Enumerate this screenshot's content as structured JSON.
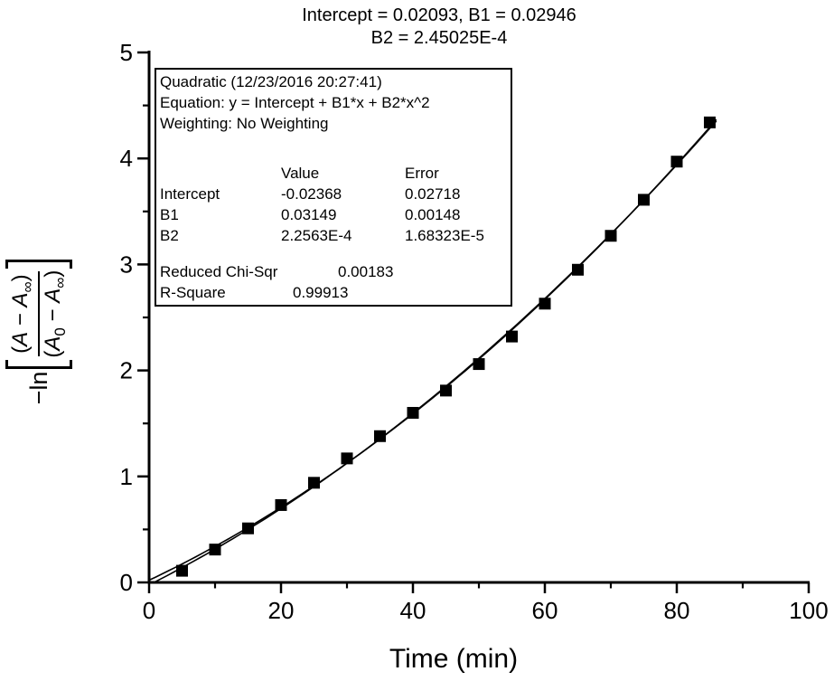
{
  "chart_data": {
    "type": "scatter",
    "title_lines": [
      "Intercept = 0.02093, B1 = 0.02946",
      "B2 = 2.45025E-4"
    ],
    "xlabel": "Time (min)",
    "ylabel_plain": "−ln[(A − A∞)/(A0 − A∞)]",
    "ylabel_math": {
      "prefix": "−ln",
      "numerator": "(A − A_∞)",
      "denominator": "(A_0 − A_∞)"
    },
    "xlim": [
      0,
      100
    ],
    "ylim": [
      0,
      5
    ],
    "x_major_ticks": [
      0,
      20,
      40,
      60,
      80,
      100
    ],
    "x_minor_ticks": [
      10,
      30,
      50,
      70,
      90
    ],
    "y_major_ticks": [
      0,
      1,
      2,
      3,
      4,
      5
    ],
    "y_minor_ticks": [
      0.5,
      1.5,
      2.5,
      3.5,
      4.5
    ],
    "grid": false,
    "legend_position": "top-left-inside",
    "marker": "filled-square",
    "color": "#000000",
    "x": [
      5,
      10,
      15,
      20,
      25,
      30,
      35,
      40,
      45,
      50,
      55,
      60,
      65,
      70,
      75,
      80,
      85
    ],
    "y": [
      0.11,
      0.31,
      0.51,
      0.73,
      0.94,
      1.17,
      1.38,
      1.6,
      1.81,
      2.06,
      2.32,
      2.63,
      2.95,
      3.27,
      3.61,
      3.97,
      4.34
    ],
    "fit_curves": [
      {
        "name": "quadratic-fit-from-table",
        "intercept": -0.02368,
        "b1": 0.03149,
        "b2": 0.00022563,
        "x_start": 0.76,
        "x_end": 86
      },
      {
        "name": "quadratic-fit-from-title",
        "intercept": 0.02093,
        "b1": 0.02946,
        "b2": 0.000245025,
        "x_start": 0,
        "x_end": 86
      }
    ],
    "fit_box": {
      "lines": [
        "Quadratic (12/23/2016 20:27:41)",
        "Equation: y = Intercept + B1*x + B2*x^2",
        "Weighting: No Weighting"
      ],
      "col_value": "Value",
      "col_error": "Error",
      "params": [
        {
          "label": "Intercept",
          "value": "-0.02368",
          "error": "0.02718"
        },
        {
          "label": "B1",
          "value": "0.03149",
          "error": "0.00148"
        },
        {
          "label": "B2",
          "value": "2.2563E-4",
          "error": "1.68323E-5"
        }
      ],
      "stats": [
        {
          "label": "Reduced Chi-Sqr",
          "value": "0.00183"
        },
        {
          "label": "R-Square",
          "value": "0.99913"
        }
      ]
    }
  }
}
